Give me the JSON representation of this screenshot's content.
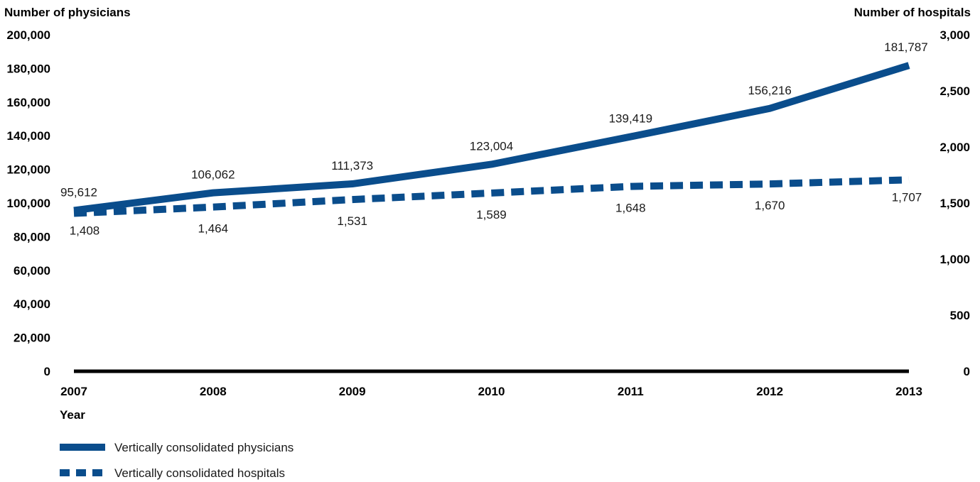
{
  "chart_data": {
    "type": "line",
    "x": [
      "2007",
      "2008",
      "2009",
      "2010",
      "2011",
      "2012",
      "2013"
    ],
    "xlabel": "Year",
    "ylabel_left": "Number of physicians",
    "ylabel_right": "Number of hospitals",
    "ylim_left": [
      0,
      200000
    ],
    "ylim_right": [
      0,
      3000
    ],
    "yticks_left": [
      "0",
      "20,000",
      "40,000",
      "60,000",
      "80,000",
      "100,000",
      "120,000",
      "140,000",
      "160,000",
      "180,000",
      "200,000"
    ],
    "yticks_right": [
      "0",
      "500",
      "1,000",
      "1,500",
      "2,000",
      "2,500",
      "3,000"
    ],
    "grid": false,
    "legend_position": "bottom-left",
    "series": [
      {
        "name": "Vertically consolidated physicians",
        "axis": "left",
        "style": "solid",
        "color": "#0a4d8c",
        "values": [
          95612,
          106062,
          111373,
          123004,
          139419,
          156216,
          181787
        ],
        "labels": [
          "95,612",
          "106,062",
          "111,373",
          "123,004",
          "139,419",
          "156,216",
          "181,787"
        ]
      },
      {
        "name": "Vertically consolidated hospitals",
        "axis": "right",
        "style": "dashed",
        "color": "#0a4d8c",
        "values": [
          1408,
          1464,
          1531,
          1589,
          1648,
          1670,
          1707
        ],
        "labels": [
          "1,408",
          "1,464",
          "1,531",
          "1,589",
          "1,648",
          "1,670",
          "1,707"
        ]
      }
    ]
  }
}
